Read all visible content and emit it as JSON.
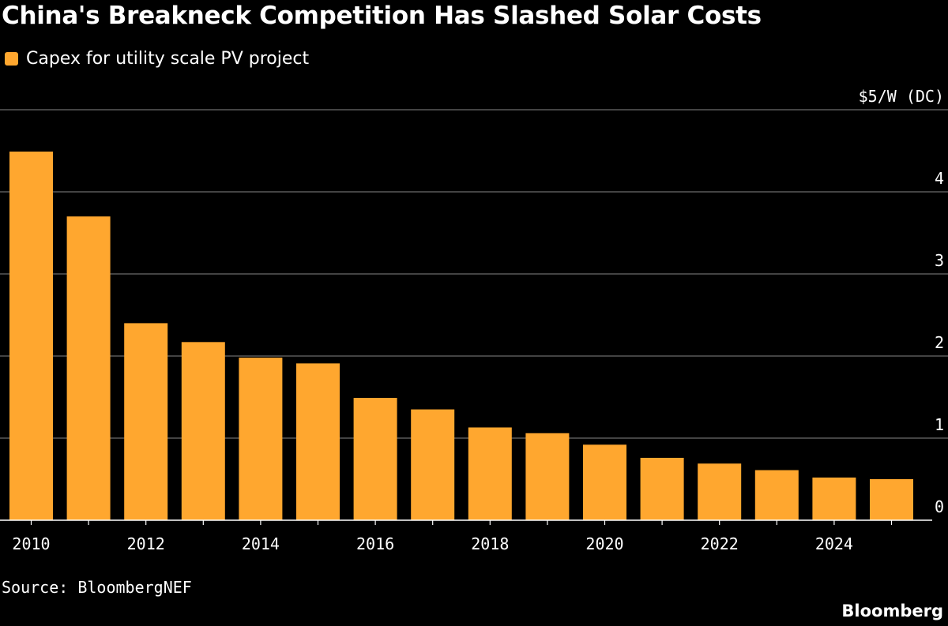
{
  "title": "China's Breakneck Competition Has Slashed Solar Costs",
  "source": "Source: BloombergNEF",
  "brand": "Bloomberg",
  "colors": {
    "bar": "#FFA72F",
    "background": "#000000",
    "grid": "#6b6b6b",
    "text": "#ffffff"
  },
  "chart_data": {
    "type": "bar",
    "title": "China's Breakneck Competition Has Slashed Solar Costs",
    "ylabel": "$5/W (DC)",
    "xlabel": "",
    "ylim": [
      0,
      5
    ],
    "yticks": [
      "4",
      "3",
      "2",
      "1",
      "0"
    ],
    "ytick_values": [
      4,
      3,
      2,
      1,
      0
    ],
    "y_axis_position": "right",
    "grid": true,
    "legend_position": "top-left",
    "xtick_labels": [
      "2010",
      "2012",
      "2014",
      "2016",
      "2018",
      "2020",
      "2022",
      "2024"
    ],
    "categories": [
      "2010",
      "2011",
      "2012",
      "2013",
      "2014",
      "2015",
      "2016",
      "2017",
      "2018",
      "2019",
      "2020",
      "2021",
      "2022",
      "2023",
      "2024",
      "2025"
    ],
    "series": [
      {
        "name": "Capex for utility scale PV project",
        "color": "#FFA72F",
        "values": [
          4.49,
          3.7,
          2.4,
          2.17,
          1.98,
          1.91,
          1.49,
          1.35,
          1.13,
          1.06,
          0.92,
          0.76,
          0.69,
          0.61,
          0.52,
          0.5
        ]
      }
    ]
  }
}
